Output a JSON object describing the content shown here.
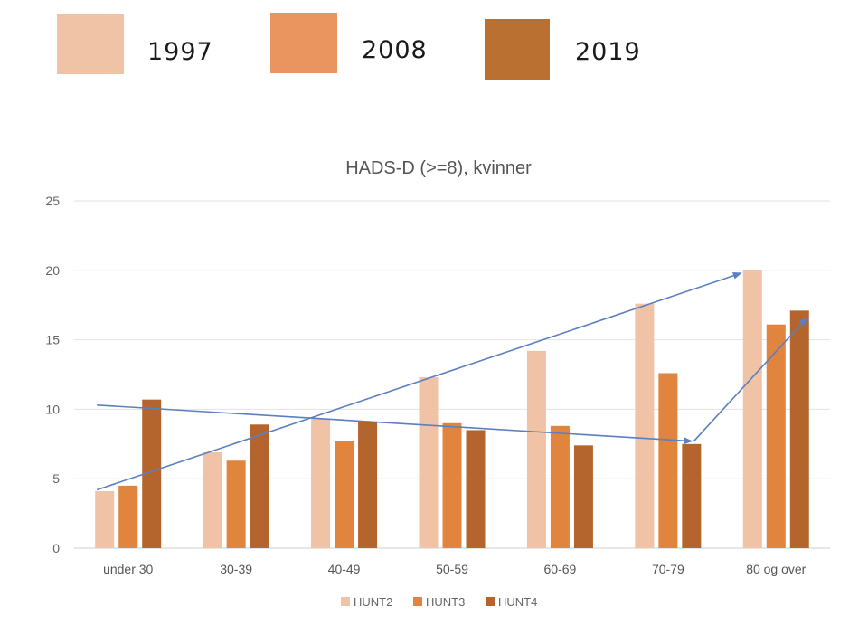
{
  "top_legend": {
    "items": [
      {
        "label": "1997",
        "color": "#f0c2a6"
      },
      {
        "label": "2008",
        "color": "#ea9460"
      },
      {
        "label": "2019",
        "color": "#b97030"
      }
    ]
  },
  "chart_data": {
    "type": "bar",
    "title": "HADS-D (>=8), kvinner",
    "xlabel": "",
    "ylabel": "",
    "categories": [
      "under 30",
      "30-39",
      "40-49",
      "50-59",
      "60-69",
      "70-79",
      "80 og over"
    ],
    "ylim": [
      0,
      25
    ],
    "yticks": [
      0,
      5,
      10,
      15,
      20,
      25
    ],
    "grid": true,
    "legend_position": "bottom",
    "series": [
      {
        "name": "HUNT2",
        "color": "#f0c2a6",
        "values": [
          4.1,
          6.9,
          9.3,
          12.3,
          14.2,
          17.6,
          20.0
        ]
      },
      {
        "name": "HUNT3",
        "color": "#e0843e",
        "values": [
          4.5,
          6.3,
          7.7,
          9.0,
          8.8,
          12.6,
          16.1
        ]
      },
      {
        "name": "HUNT4",
        "color": "#b4642d",
        "values": [
          10.7,
          8.9,
          9.1,
          8.5,
          7.4,
          7.5,
          17.1
        ]
      }
    ],
    "annotations": [
      {
        "type": "arrow",
        "from": {
          "x": "under 30",
          "y": 4.2
        },
        "to": {
          "x": "80 og over",
          "y": 19.8
        }
      },
      {
        "type": "arrow",
        "from": {
          "x": "under 30",
          "y": 10.3
        },
        "to": {
          "x": "70-79",
          "y": 7.7
        }
      },
      {
        "type": "arrow",
        "from": {
          "x": "70-79",
          "y": 7.7
        },
        "to": {
          "x": "80 og over",
          "y": 16.6
        }
      }
    ],
    "annotation_color": "#5b7fc2"
  }
}
